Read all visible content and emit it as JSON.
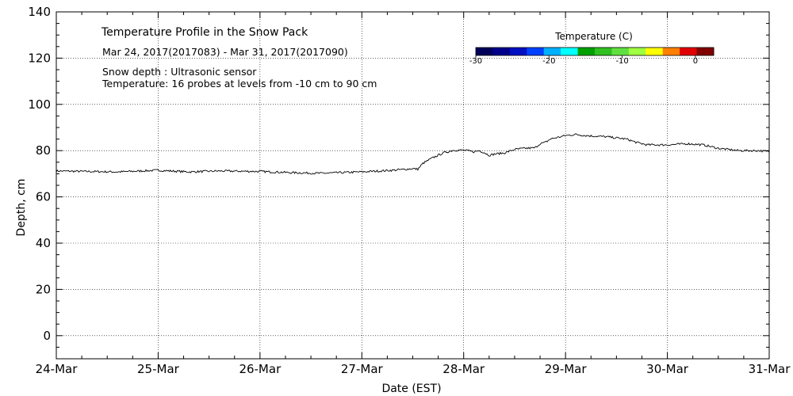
{
  "chart_data": {
    "type": "line",
    "title": "Temperature Profile in the Snow Pack",
    "subtitle": "Mar 24, 2017(2017083) - Mar 31, 2017(2017090)",
    "annotations": [
      "Snow depth : Ultrasonic sensor",
      "Temperature: 16 probes at levels from -10 cm to 90 cm"
    ],
    "xlabel": "Date (EST)",
    "ylabel": "Depth, cm",
    "xlim": [
      0,
      7
    ],
    "ylim": [
      -10,
      140
    ],
    "grid": true,
    "x_ticks": [
      {
        "pos": 0,
        "label": "24-Mar"
      },
      {
        "pos": 1,
        "label": "25-Mar"
      },
      {
        "pos": 2,
        "label": "26-Mar"
      },
      {
        "pos": 3,
        "label": "27-Mar"
      },
      {
        "pos": 4,
        "label": "28-Mar"
      },
      {
        "pos": 5,
        "label": "29-Mar"
      },
      {
        "pos": 6,
        "label": "30-Mar"
      },
      {
        "pos": 7,
        "label": "31-Mar"
      }
    ],
    "y_ticks": [
      {
        "pos": 0,
        "label": "0"
      },
      {
        "pos": 20,
        "label": "20"
      },
      {
        "pos": 40,
        "label": "40"
      },
      {
        "pos": 60,
        "label": "60"
      },
      {
        "pos": 80,
        "label": "80"
      },
      {
        "pos": 100,
        "label": "100"
      },
      {
        "pos": 120,
        "label": "120"
      },
      {
        "pos": 140,
        "label": "140"
      }
    ],
    "series": [
      {
        "name": "Snow depth",
        "x": [
          0,
          0.3,
          0.6,
          1.0,
          1.3,
          1.6,
          2.0,
          2.3,
          2.6,
          3.0,
          3.3,
          3.5,
          3.55,
          3.6,
          3.7,
          3.8,
          3.9,
          4.0,
          4.1,
          4.15,
          4.2,
          4.25,
          4.3,
          4.4,
          4.5,
          4.6,
          4.7,
          4.75,
          4.8,
          4.85,
          4.9,
          5.0,
          5.1,
          5.2,
          5.4,
          5.6,
          5.7,
          5.8,
          6.0,
          6.2,
          6.35,
          6.5,
          6.7,
          6.9,
          7.0
        ],
        "y": [
          71.2,
          71.0,
          70.8,
          71.5,
          70.8,
          71.2,
          71.0,
          70.5,
          70.2,
          70.8,
          71.5,
          72.2,
          72.0,
          74.5,
          77.0,
          79.0,
          80.2,
          80.2,
          79.5,
          80.0,
          79.2,
          78.0,
          78.5,
          79.0,
          80.5,
          81.0,
          81.2,
          83.0,
          83.5,
          85.0,
          85.5,
          86.5,
          87.0,
          86.5,
          86.0,
          85.0,
          83.5,
          82.5,
          82.5,
          83.0,
          82.5,
          81.0,
          80.0,
          80.0,
          79.5
        ]
      }
    ],
    "colorbar": {
      "title": "Temperature (C)",
      "min": -30,
      "max": 2.5,
      "tick_labels": [
        {
          "value": -30,
          "label": "-30"
        },
        {
          "value": -20,
          "label": "-20"
        },
        {
          "value": -10,
          "label": "-10"
        },
        {
          "value": 0,
          "label": "0"
        }
      ],
      "colors": [
        "#00005a",
        "#00008b",
        "#000fbf",
        "#0040ff",
        "#00b0ff",
        "#00ffff",
        "#00a000",
        "#30c020",
        "#60e040",
        "#a0ff40",
        "#ffff00",
        "#ff8000",
        "#e00000",
        "#800000"
      ]
    }
  }
}
